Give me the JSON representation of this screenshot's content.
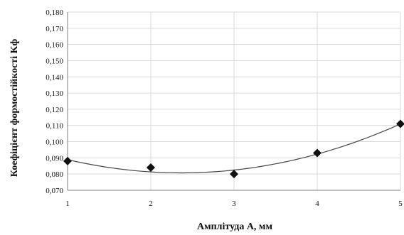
{
  "chart_data": {
    "type": "scatter",
    "title": "",
    "xlabel": "Амплітуда A, мм",
    "ylabel": "Коефіцієнт формостійкості Kф",
    "xlim": [
      1,
      5
    ],
    "ylim": [
      0.07,
      0.18
    ],
    "x_ticks": [
      "1",
      "2",
      "3",
      "4",
      "5"
    ],
    "y_ticks": [
      "0,070",
      "0,080",
      "0,090",
      "0,100",
      "0,110",
      "0,120",
      "0,130",
      "0,140",
      "0,150",
      "0,160",
      "0,170",
      "0,180"
    ],
    "grid": true,
    "legend": "none",
    "marker": "diamond",
    "series": [
      {
        "x": [
          1,
          2,
          3,
          4,
          5
        ],
        "y": [
          0.088,
          0.084,
          0.08,
          0.093,
          0.111
        ]
      }
    ],
    "trendline": {
      "type": "polynomial",
      "order": 2
    },
    "colors": {
      "marker": "#111111",
      "line": "#444444",
      "grid": "#d9d9d9"
    }
  }
}
